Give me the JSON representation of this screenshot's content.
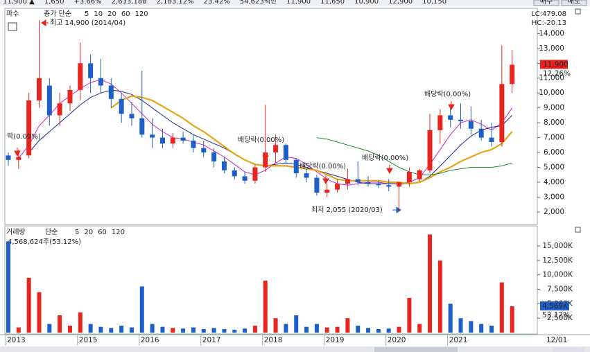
{
  "toolbar": {
    "items": [
      "11,900 ▲",
      "1,650",
      "+3.66%",
      "2,633,188",
      "2,183.12%",
      "23.42%",
      "54,623백만",
      "11,900",
      "11,650",
      "10,900",
      "12,900",
      "10,150"
    ],
    "buttons": [
      "매수",
      "매도"
    ]
  },
  "chart_data": [
    {
      "type": "candlestick",
      "title": "파수",
      "legend_label": "종가 단순",
      "inactive_periods": [
        "120"
      ],
      "categories": [
        "2013",
        null,
        null,
        null,
        null,
        null,
        null,
        "2015",
        null,
        null,
        null,
        null,
        null,
        "2016",
        null,
        null,
        null,
        null,
        null,
        "2017",
        null,
        null,
        null,
        null,
        null,
        "2018",
        null,
        null,
        null,
        null,
        null,
        "2019",
        null,
        null,
        null,
        null,
        null,
        "2020",
        null,
        null,
        null,
        null,
        null,
        "2021",
        null,
        null,
        null,
        null,
        null,
        null
      ],
      "x_end_label": "12/01",
      "open": [
        5800,
        5500,
        5800,
        9500,
        10500,
        8500,
        9300,
        10200,
        12000,
        11000,
        10500,
        9600,
        8600,
        8300,
        7200,
        7000,
        6600,
        7000,
        6800,
        6300,
        6000,
        5400,
        4800,
        4400,
        4100,
        5000,
        6000,
        6500,
        5500,
        4600,
        4300,
        3300,
        3500,
        3900,
        4200,
        4000,
        3900,
        3800,
        3700,
        4000,
        4200,
        4800,
        7500,
        8500,
        8200,
        8100,
        7600,
        7000,
        6700,
        10600
      ],
      "high": [
        6000,
        6200,
        10000,
        14900,
        11000,
        10000,
        10500,
        13400,
        12600,
        12300,
        11000,
        10000,
        9400,
        11500,
        8300,
        7600,
        7300,
        7400,
        7200,
        6800,
        6300,
        5700,
        5000,
        4700,
        5200,
        9200,
        7200,
        6600,
        5600,
        4900,
        4500,
        3900,
        4200,
        4900,
        5400,
        4400,
        4100,
        4200,
        3900,
        5000,
        4900,
        8600,
        8900,
        9200,
        9300,
        9100,
        8200,
        8000,
        13200,
        12900
      ],
      "low": [
        5100,
        4900,
        5600,
        9000,
        7800,
        7800,
        8800,
        9500,
        10000,
        10000,
        9000,
        8000,
        7800,
        7000,
        6300,
        6300,
        6300,
        6600,
        6000,
        5700,
        5000,
        4600,
        4200,
        3900,
        3900,
        4700,
        5300,
        5200,
        4300,
        4000,
        3100,
        3000,
        3300,
        3500,
        3800,
        3700,
        3600,
        3400,
        2055,
        3700,
        4000,
        4600,
        6600,
        7700,
        7600,
        7200,
        6800,
        6400,
        6400,
        10000
      ],
      "close": [
        5500,
        5700,
        9500,
        11000,
        8500,
        9300,
        10200,
        12000,
        11000,
        10500,
        9600,
        8600,
        8300,
        7200,
        7000,
        6600,
        7000,
        6800,
        6300,
        6000,
        5400,
        4800,
        4400,
        4100,
        5000,
        6000,
        6500,
        5500,
        4600,
        4300,
        3300,
        3500,
        3900,
        4200,
        4000,
        3900,
        3800,
        3700,
        4000,
        4700,
        4800,
        7500,
        8500,
        8200,
        8100,
        7600,
        7000,
        6700,
        10600,
        11900
      ],
      "up_color": "#e8251f",
      "down_color": "#1d5fc9",
      "series": [
        {
          "name": "5",
          "color": "#d020c8",
          "width": 1,
          "values": [
            null,
            5600,
            6500,
            7800,
            8500,
            9300,
            9800,
            10300,
            10700,
            10900,
            10600,
            10000,
            9300,
            8600,
            7900,
            7400,
            7000,
            6900,
            6700,
            6500,
            6100,
            5700,
            5200,
            4700,
            4500,
            4800,
            5300,
            5700,
            5600,
            5200,
            4700,
            4200,
            3900,
            3800,
            3900,
            4000,
            4000,
            3900,
            3900,
            4000,
            4300,
            5200,
            6200,
            7200,
            8000,
            8200,
            7900,
            7500,
            8000,
            9000
          ]
        },
        {
          "name": "10",
          "color": "#1a2a8a",
          "width": 1,
          "values": [
            null,
            null,
            6000,
            6800,
            7400,
            8000,
            8600,
            9200,
            9700,
            10000,
            10200,
            10100,
            9900,
            9500,
            9000,
            8500,
            8000,
            7600,
            7200,
            6900,
            6600,
            6300,
            5900,
            5500,
            5200,
            5100,
            5200,
            5300,
            5200,
            5000,
            4800,
            4600,
            4400,
            4200,
            4000,
            3900,
            3900,
            3900,
            3900,
            3900,
            4000,
            4400,
            5100,
            5800,
            6500,
            7100,
            7500,
            7700,
            7800,
            8500
          ]
        },
        {
          "name": "20",
          "color": "#e8a316",
          "width": 2.2,
          "values": [
            null,
            null,
            null,
            null,
            null,
            null,
            null,
            null,
            null,
            null,
            9000,
            9500,
            9800,
            9700,
            9500,
            9100,
            8700,
            8300,
            7800,
            7400,
            6900,
            6400,
            5900,
            5500,
            5200,
            5100,
            5100,
            5100,
            5000,
            4900,
            4800,
            4500,
            4200,
            4100,
            4100,
            4100,
            4100,
            4000,
            4000,
            3900,
            4000,
            4300,
            4700,
            5000,
            5400,
            5700,
            6000,
            6200,
            6600,
            7400
          ]
        },
        {
          "name": "60",
          "color": "#1e8a3a",
          "width": 1,
          "values": [
            null,
            null,
            null,
            null,
            null,
            null,
            null,
            null,
            null,
            null,
            null,
            null,
            null,
            null,
            null,
            null,
            null,
            null,
            null,
            null,
            null,
            null,
            null,
            null,
            null,
            null,
            null,
            null,
            null,
            null,
            7000,
            6900,
            6700,
            6500,
            6300,
            6100,
            5800,
            5400,
            5000,
            4700,
            4500,
            4500,
            4600,
            4800,
            4900,
            5000,
            5000,
            5000,
            5100,
            5300
          ]
        }
      ],
      "ylim": [
        1250,
        15600
      ],
      "yticks": [
        {
          "value": 2000,
          "label": "2,000"
        },
        {
          "value": 3000,
          "label": "3,000"
        },
        {
          "value": 4000,
          "label": "4,000"
        },
        {
          "value": 5000,
          "label": "5,000"
        },
        {
          "value": 6000,
          "label": "6,000"
        },
        {
          "value": 7000,
          "label": "7,000"
        },
        {
          "value": 8000,
          "label": "8,000"
        },
        {
          "value": 9000,
          "label": "9,000"
        },
        {
          "value": 10000,
          "label": "10,000"
        },
        {
          "value": 11000,
          "label": "11,000"
        },
        {
          "value": 12000,
          "label": "12,000"
        },
        {
          "value": 13000,
          "label": "13,000"
        },
        {
          "value": 14000,
          "label": "14,000"
        }
      ],
      "last_price": {
        "value": 11900,
        "label": "11,900"
      },
      "last_change": "12.26%",
      "lc_label": "LC:479.08",
      "hc_label": "HC:-20.13",
      "high_annotation": "최고 14,900 (2014/04)",
      "low_annotation": "최저 2,055 (2020/03)",
      "annotations": [
        "락(0.00%)",
        "배당락(0.00%)",
        "배당락(0.00%)",
        "배당락(0.00%)",
        "배당락(0.00%)"
      ]
    },
    {
      "type": "bar",
      "title": "거래량",
      "legend_label": "단순",
      "legend_periods": [
        "5",
        "20",
        "60",
        "120"
      ],
      "legend_colors": [
        "#d020c8",
        "#e8a316",
        "#1e8a3a",
        "#999999"
      ],
      "info": "4,568,624주(53.12%)",
      "values": [
        15800,
        900,
        9500,
        7000,
        1500,
        3000,
        1200,
        3500,
        1500,
        1000,
        800,
        1200,
        900,
        8000,
        1500,
        1000,
        800,
        700,
        900,
        600,
        800,
        600,
        500,
        700,
        1200,
        9000,
        2500,
        1500,
        3000,
        1000,
        1500,
        900,
        1000,
        2500,
        1200,
        800,
        600,
        700,
        1000,
        6000,
        1500,
        17000,
        12500,
        5000,
        2500,
        2000,
        1500,
        1200,
        8700,
        4569
      ],
      "ylim": [
        0,
        17650
      ],
      "yticks": [
        {
          "value": 2500,
          "label": "2,500K"
        },
        {
          "value": 5000,
          "label": "5,000K"
        },
        {
          "value": 7500,
          "label": "7,500K"
        },
        {
          "value": 10000,
          "label": "10,000K"
        },
        {
          "value": 12500,
          "label": "12,500K"
        },
        {
          "value": 15000,
          "label": "15,000K"
        }
      ],
      "last_value": {
        "value": 4569,
        "label": "4,569K"
      },
      "last_ratio": "53.12%"
    }
  ]
}
